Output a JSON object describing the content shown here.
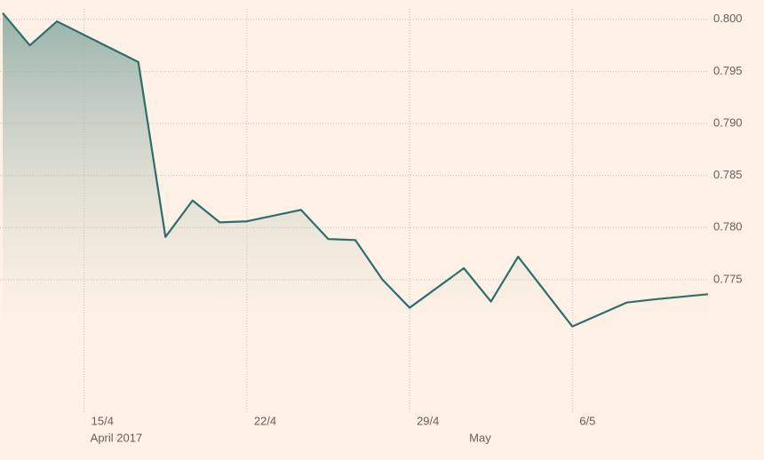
{
  "chart_data": {
    "type": "line",
    "x": [
      0,
      1,
      2,
      5,
      6,
      7,
      8,
      9,
      11,
      12,
      13,
      14,
      15,
      17,
      18,
      19,
      21,
      23,
      24,
      26
    ],
    "series": [
      {
        "color": "#2e6e6e",
        "values": [
          0.8006,
          0.7975,
          0.7998,
          0.7959,
          0.7791,
          0.7826,
          0.7805,
          0.7806,
          0.7817,
          0.7789,
          0.7788,
          0.775,
          0.7723,
          0.7761,
          0.7729,
          0.7772,
          0.7705,
          0.7728,
          0.7731,
          0.7736
        ]
      }
    ],
    "xlim": [
      -0.1,
      26.1
    ],
    "xticks": [
      {
        "value": 3,
        "label": "15/4"
      },
      {
        "value": 9,
        "label": "22/4"
      },
      {
        "value": 15,
        "label": "29/4"
      },
      {
        "value": 21,
        "label": "6/5"
      }
    ],
    "x_period_labels": [
      {
        "value": 3,
        "label": "April 2017"
      },
      {
        "value": 17.6,
        "label": "May"
      }
    ],
    "ylim": [
      0.7622,
      0.801
    ],
    "yticks": [
      {
        "value": 0.775,
        "label": "0.775"
      },
      {
        "value": 0.78,
        "label": "0.780"
      },
      {
        "value": 0.785,
        "label": "0.785"
      },
      {
        "value": 0.79,
        "label": "0.790"
      },
      {
        "value": 0.795,
        "label": "0.795"
      },
      {
        "value": 0.8,
        "label": "0.800"
      }
    ],
    "grid": true,
    "area_fill": true
  }
}
